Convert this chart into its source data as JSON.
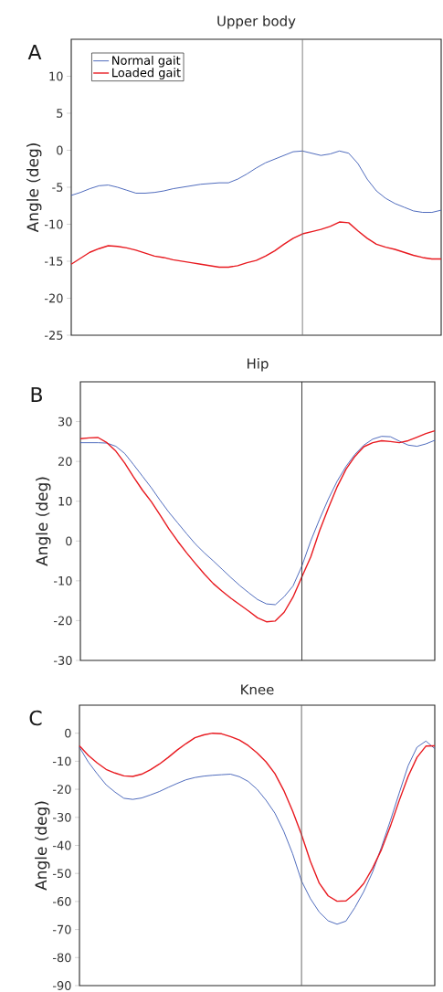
{
  "chart_data": [
    {
      "type": "line",
      "title": "Upper body",
      "ylabel": "Angle (deg)",
      "annotations": [
        "A"
      ],
      "ylim": [
        -25,
        15
      ],
      "yticks": [
        -25,
        -20,
        -15,
        -10,
        -5,
        0,
        5,
        10
      ],
      "tick_labels": "y",
      "grid": false,
      "legend": "top left",
      "marker": "none",
      "line_style": "solid",
      "categories": [
        null,
        null,
        null,
        null,
        null,
        null,
        null,
        null,
        null,
        null,
        null,
        null,
        null,
        null,
        null,
        null,
        null,
        null,
        null,
        null,
        null,
        null,
        null,
        null,
        null,
        null,
        null,
        null,
        null,
        null,
        null,
        null,
        null,
        null,
        null,
        null,
        null,
        null,
        null,
        null,
        null
      ],
      "series": [
        {
          "name": "Normal gait",
          "color": "#3b5bb5",
          "values": [
            -6.1,
            -5.7,
            -5.2,
            -4.8,
            -4.7,
            -5.0,
            -5.4,
            -5.8,
            -5.8,
            -5.7,
            -5.5,
            -5.2,
            -5.0,
            -4.8,
            -4.6,
            -4.5,
            -4.4,
            -4.4,
            -3.9,
            -3.2,
            -2.4,
            -1.7,
            -1.2,
            -0.7,
            -0.2,
            -0.1,
            -0.4,
            -0.7,
            -0.5,
            -0.1,
            -0.4,
            -1.8,
            -3.9,
            -5.5,
            -6.5,
            -7.2,
            -7.7,
            -8.2,
            -8.4,
            -8.4,
            -8.1
          ]
        },
        {
          "name": "Loaded gait",
          "color": "#e8191f",
          "values": [
            -15.4,
            -14.6,
            -13.8,
            -13.3,
            -12.9,
            -13.0,
            -13.2,
            -13.5,
            -13.9,
            -14.3,
            -14.5,
            -14.8,
            -15.0,
            -15.2,
            -15.4,
            -15.6,
            -15.8,
            -15.8,
            -15.6,
            -15.2,
            -14.9,
            -14.3,
            -13.6,
            -12.7,
            -11.9,
            -11.3,
            -11.0,
            -10.7,
            -10.3,
            -9.7,
            -9.8,
            -10.9,
            -11.9,
            -12.7,
            -13.1,
            -13.4,
            -13.8,
            -14.2,
            -14.5,
            -14.7,
            -14.7
          ]
        }
      ]
    },
    {
      "type": "line",
      "title": "Hip",
      "ylabel": "Angle (deg)",
      "annotations": [
        "B"
      ],
      "ylim": [
        -30,
        40
      ],
      "yticks": [
        -30,
        -20,
        -10,
        0,
        10,
        20,
        30
      ],
      "tick_labels": "y",
      "grid": false,
      "marker": "none",
      "line_style": "solid",
      "categories": [
        null,
        null,
        null,
        null,
        null,
        null,
        null,
        null,
        null,
        null,
        null,
        null,
        null,
        null,
        null,
        null,
        null,
        null,
        null,
        null,
        null,
        null,
        null,
        null,
        null,
        null,
        null,
        null,
        null,
        null,
        null,
        null,
        null,
        null,
        null,
        null,
        null,
        null,
        null,
        null,
        null
      ],
      "series": [
        {
          "color": "#3b5bb5",
          "values": [
            24.7,
            24.7,
            24.7,
            24.6,
            23.8,
            22.0,
            19.2,
            16.3,
            13.4,
            10.2,
            7.2,
            4.5,
            1.8,
            -0.8,
            -3.0,
            -5.0,
            -7.1,
            -9.2,
            -11.2,
            -13.0,
            -14.7,
            -15.8,
            -16.0,
            -14.0,
            -11.3,
            -6.3,
            0,
            5.5,
            10.6,
            15.1,
            18.8,
            21.8,
            24.1,
            25.6,
            26.3,
            26.2,
            25.1,
            24.1,
            23.8,
            24.4,
            25.3
          ]
        },
        {
          "color": "#e8191f",
          "values": [
            25.7,
            25.9,
            26.0,
            24.7,
            22.6,
            19.6,
            16.1,
            12.8,
            9.9,
            6.5,
            3.0,
            -0.1,
            -3.0,
            -5.7,
            -8.3,
            -10.7,
            -12.6,
            -14.4,
            -16.0,
            -17.6,
            -19.3,
            -20.3,
            -20.1,
            -17.9,
            -14.1,
            -9.0,
            -4.0,
            2.6,
            8.3,
            13.7,
            18.1,
            21.3,
            23.7,
            24.7,
            25.2,
            25.0,
            24.7,
            25.2,
            26.1,
            27.0,
            27.7
          ]
        }
      ]
    },
    {
      "type": "line",
      "title": "Knee",
      "ylabel": "Angle (deg)",
      "annotations": [
        "C"
      ],
      "ylim": [
        -90,
        10
      ],
      "yticks": [
        -90,
        -80,
        -70,
        -60,
        -50,
        -40,
        -30,
        -20,
        -10,
        0
      ],
      "tick_labels": "y",
      "grid": false,
      "marker": "none",
      "line_style": "solid",
      "categories": [
        null,
        null,
        null,
        null,
        null,
        null,
        null,
        null,
        null,
        null,
        null,
        null,
        null,
        null,
        null,
        null,
        null,
        null,
        null,
        null,
        null,
        null,
        null,
        null,
        null,
        null,
        null,
        null,
        null,
        null,
        null,
        null,
        null,
        null,
        null,
        null,
        null,
        null,
        null,
        null,
        null
      ],
      "series": [
        {
          "color": "#3b5bb5",
          "values": [
            -5,
            -10.3,
            -14.5,
            -18.4,
            -21.0,
            -23.2,
            -23.6,
            -23.1,
            -22.0,
            -20.8,
            -19.3,
            -17.9,
            -16.6,
            -15.8,
            -15.3,
            -15.0,
            -14.8,
            -14.6,
            -15.5,
            -17.2,
            -20.0,
            -23.9,
            -28.5,
            -35.0,
            -43.0,
            -52.7,
            -59.0,
            -63.8,
            -66.9,
            -68.1,
            -67.0,
            -62.2,
            -56.5,
            -49.5,
            -40.6,
            -31.2,
            -21.3,
            -11.6,
            -5.0,
            -2.8,
            -5.5
          ]
        },
        {
          "color": "#e8191f",
          "values": [
            -4.5,
            -7.9,
            -10.6,
            -12.9,
            -14.2,
            -15.2,
            -15.4,
            -14.6,
            -13.0,
            -11.0,
            -8.6,
            -6.0,
            -3.7,
            -1.6,
            -0.6,
            0,
            -0.2,
            -1.2,
            -2.4,
            -4.4,
            -7.0,
            -10.2,
            -14.4,
            -20.4,
            -27.8,
            -36.2,
            -45.7,
            -53.5,
            -58.0,
            -59.9,
            -59.8,
            -57.2,
            -53.6,
            -48.1,
            -41.5,
            -33.2,
            -24.0,
            -15.4,
            -8.6,
            -4.6,
            -4.5
          ]
        }
      ]
    }
  ]
}
